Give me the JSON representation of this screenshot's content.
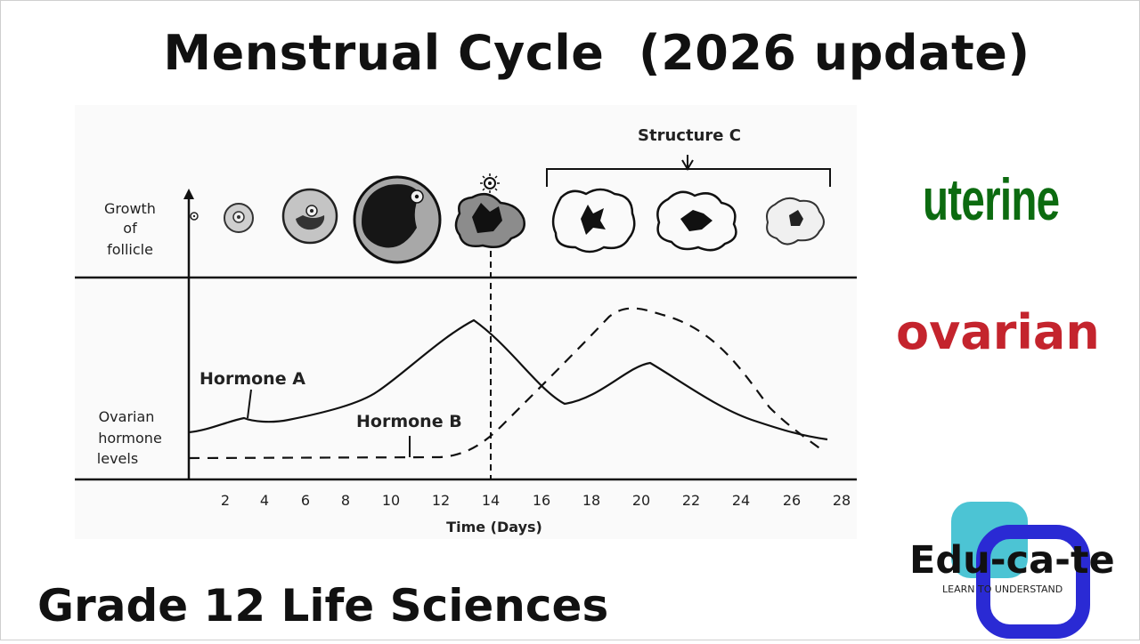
{
  "title": "Menstrual Cycle  (2026 update)",
  "diagram": {
    "follicle_label": [
      "Growth",
      "of",
      "follicle"
    ],
    "hormone_label": [
      "Ovarian",
      "hormone",
      "levels"
    ],
    "structure_label": "Structure C",
    "hormone_a": "Hormone A",
    "hormone_b": "Hormone B",
    "x_axis_title": "Time (Days)",
    "x_ticks": [
      "2",
      "4",
      "6",
      "8",
      "10",
      "12",
      "14",
      "16",
      "18",
      "20",
      "22",
      "24",
      "26",
      "28"
    ]
  },
  "side_words": {
    "uterine": "uterine",
    "ovarian": "ovarian"
  },
  "subtitle": "Grade 12 Life Sciences",
  "logo": {
    "name": "Edu-ca-te",
    "tagline": "LEARN TO UNDERSTAND"
  },
  "colors": {
    "uterine": "#0c6b10",
    "ovarian": "#c4242d",
    "logo_teal": "#4cc4d4",
    "logo_blue": "#2a2ad4"
  }
}
